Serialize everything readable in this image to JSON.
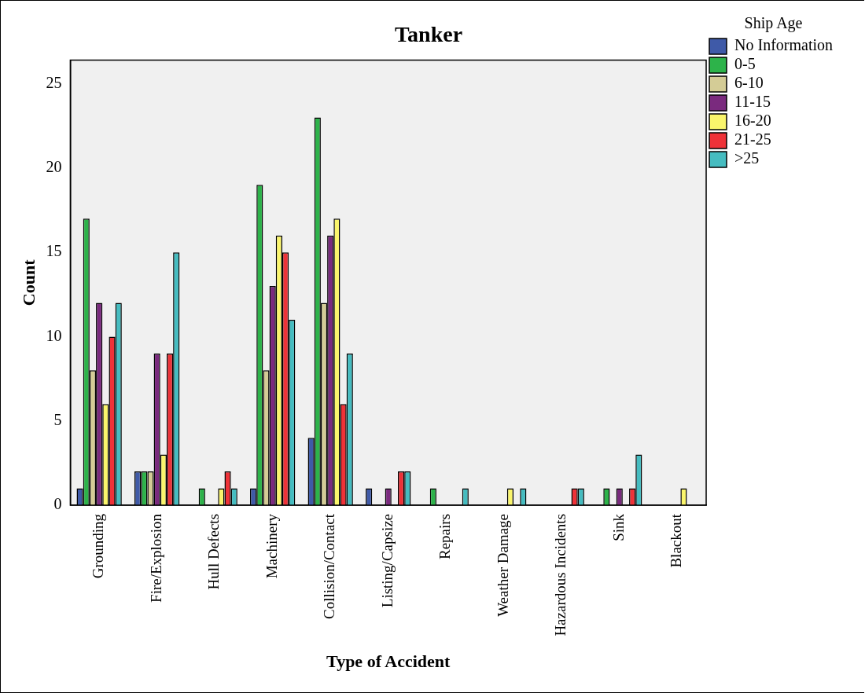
{
  "chart_data": {
    "type": "bar",
    "title": "Tanker",
    "xlabel": "Type of Accident",
    "ylabel": "Count",
    "legend_title": "Ship Age",
    "legend": "right",
    "grid": false,
    "categories": [
      "Grounding",
      "Fire/Explosion",
      "Hull Defects",
      "Machinery",
      "Collision/Contact",
      "Listing/Capsize",
      "Repairs",
      "Weather Damage",
      "Hazardous Incidents",
      "Sink",
      "Blackout"
    ],
    "ylim": [
      0,
      26.4
    ],
    "yticks": [
      0,
      5,
      10,
      15,
      20,
      25
    ],
    "series": [
      {
        "name": "No Information",
        "color": "#3f5aa8",
        "values": [
          1,
          2,
          null,
          1,
          4,
          1,
          null,
          null,
          null,
          null,
          null
        ]
      },
      {
        "name": "0-5",
        "color": "#2db34a",
        "values": [
          17,
          2,
          1,
          19,
          23,
          null,
          1,
          null,
          null,
          1,
          null
        ]
      },
      {
        "name": "6-10",
        "color": "#d4cc96",
        "values": [
          8,
          2,
          null,
          8,
          12,
          null,
          null,
          null,
          null,
          null,
          null
        ]
      },
      {
        "name": "11-15",
        "color": "#7a2a7e",
        "values": [
          12,
          9,
          null,
          13,
          16,
          1,
          null,
          null,
          null,
          1,
          null
        ]
      },
      {
        "name": "16-20",
        "color": "#faf56c",
        "values": [
          6,
          3,
          1,
          16,
          17,
          null,
          null,
          1,
          null,
          null,
          1
        ]
      },
      {
        "name": "21-25",
        "color": "#ee3238",
        "values": [
          10,
          9,
          2,
          15,
          6,
          2,
          null,
          null,
          1,
          1,
          null
        ]
      },
      {
        "name": ">25",
        "color": "#45bcc0",
        "values": [
          12,
          15,
          1,
          11,
          9,
          2,
          1,
          1,
          1,
          3,
          null
        ]
      }
    ]
  }
}
